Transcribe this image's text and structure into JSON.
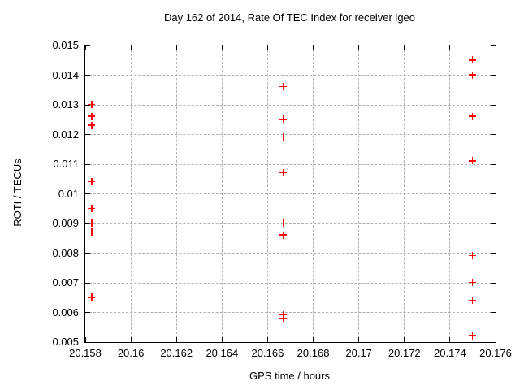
{
  "chart_data": {
    "type": "scatter",
    "title": "Day 162 of 2014, Rate Of TEC Index for receiver igeo",
    "xlabel": "GPS time / hours",
    "ylabel": "ROTI / TECUs",
    "xlim": [
      20.158,
      20.176
    ],
    "ylim": [
      0.005,
      0.015
    ],
    "x_ticks": [
      20.158,
      20.16,
      20.162,
      20.164,
      20.166,
      20.168,
      20.17,
      20.172,
      20.174,
      20.176
    ],
    "x_tick_labels": [
      "20.158",
      "20.16",
      "20.162",
      "20.164",
      "20.166",
      "20.168",
      "20.17",
      "20.172",
      "20.174",
      "20.176"
    ],
    "y_ticks": [
      0.005,
      0.006,
      0.007,
      0.008,
      0.009,
      0.01,
      0.011,
      0.012,
      0.013,
      0.014,
      0.015
    ],
    "y_tick_labels": [
      "0.005",
      "0.006",
      "0.007",
      "0.008",
      "0.009",
      "0.01",
      "0.011",
      "0.012",
      "0.013",
      "0.014",
      "0.015"
    ],
    "grid": true,
    "legend": "none",
    "marker": {
      "shape": "plus",
      "color": "#ff0000",
      "size": 9
    },
    "series": [
      {
        "name": "ROTI",
        "color": "#ff0000",
        "points": [
          [
            20.1583,
            0.013
          ],
          [
            20.1583,
            0.0126
          ],
          [
            20.1583,
            0.0123
          ],
          [
            20.1583,
            0.0104
          ],
          [
            20.1583,
            0.0095
          ],
          [
            20.1583,
            0.009
          ],
          [
            20.1583,
            0.0087
          ],
          [
            20.1583,
            0.0065
          ],
          [
            20.1667,
            0.0136
          ],
          [
            20.1667,
            0.0125
          ],
          [
            20.1667,
            0.0119
          ],
          [
            20.1667,
            0.0107
          ],
          [
            20.1667,
            0.009
          ],
          [
            20.1667,
            0.0086
          ],
          [
            20.1667,
            0.0059
          ],
          [
            20.1667,
            0.0058
          ],
          [
            20.175,
            0.0145
          ],
          [
            20.175,
            0.014
          ],
          [
            20.175,
            0.0126
          ],
          [
            20.175,
            0.0111
          ],
          [
            20.175,
            0.0079
          ],
          [
            20.175,
            0.007
          ],
          [
            20.175,
            0.0064
          ],
          [
            20.175,
            0.0052
          ]
        ]
      }
    ],
    "colors": {
      "background": "#ffffff",
      "border": "#000000",
      "grid": "#b0b0b0",
      "text": "#000000",
      "marker": "#ff0000"
    }
  }
}
